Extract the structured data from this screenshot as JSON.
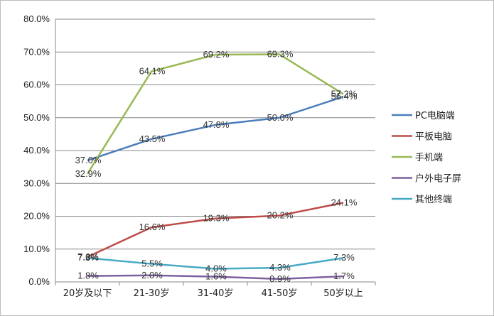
{
  "chart_data": {
    "type": "line",
    "title": "",
    "xlabel": "",
    "ylabel": "",
    "categories": [
      "20岁及以下",
      "21-30岁",
      "31-40岁",
      "41-50岁",
      "50岁以上"
    ],
    "ylim": [
      0,
      80
    ],
    "yticks": [
      "0.0%",
      "10.0%",
      "20.0%",
      "30.0%",
      "40.0%",
      "50.0%",
      "60.0%",
      "70.0%",
      "80.0%"
    ],
    "grid": "horizontal",
    "legend_position": "right",
    "series": [
      {
        "name": "PC电脑端",
        "color": "#4a7ebb",
        "values": [
          37.0,
          43.5,
          47.8,
          50.0,
          56.4
        ],
        "labels": [
          "37.0%",
          "43.5%",
          "47.8%",
          "50.0%",
          "56.4%"
        ]
      },
      {
        "name": "平板电脑",
        "color": "#be4b48",
        "values": [
          7.6,
          16.6,
          19.3,
          20.2,
          24.1
        ],
        "labels": [
          "7.6%",
          "16.6%",
          "19.3%",
          "20.2%",
          "24.1%"
        ]
      },
      {
        "name": "手机端",
        "color": "#98b954",
        "values": [
          32.9,
          64.1,
          69.2,
          69.3,
          57.2
        ],
        "labels": [
          "32.9%",
          "64.1%",
          "69.2%",
          "69.3%",
          "57.2%"
        ]
      },
      {
        "name": "户外电子屏",
        "color": "#7d60a0",
        "values": [
          1.8,
          2.0,
          1.6,
          0.9,
          1.7
        ],
        "labels": [
          "1.8%",
          "2.0%",
          "1.6%",
          "0.9%",
          "1.7%"
        ]
      },
      {
        "name": "其他终端",
        "color": "#46aac5",
        "values": [
          7.3,
          5.5,
          4.0,
          4.3,
          7.3
        ],
        "labels": [
          "7.3%",
          "5.5%",
          "4.0%",
          "4.3%",
          "7.3%"
        ]
      }
    ]
  }
}
